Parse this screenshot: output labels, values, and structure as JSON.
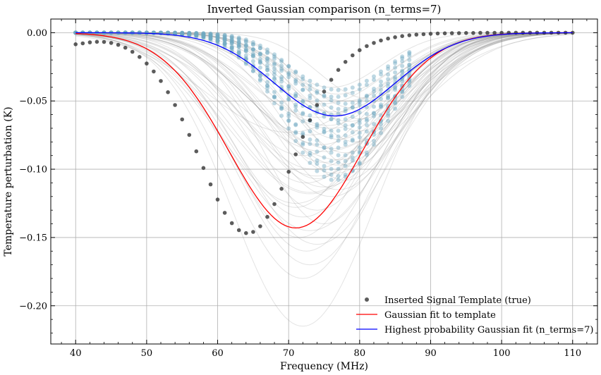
{
  "chart_data": {
    "type": "line",
    "title": "Inverted Gaussian comparison (n_terms=7)",
    "xlabel": "Frequency (MHz)",
    "ylabel": "Temperature perturbation (K)",
    "xlim": [
      36.5,
      113.5
    ],
    "ylim": [
      -0.228,
      0.01
    ],
    "grid": true,
    "legend_position": "lower-right",
    "x_ticks": [
      40,
      50,
      60,
      70,
      80,
      90,
      100,
      110
    ],
    "x_tick_labels": [
      "40",
      "50",
      "60",
      "70",
      "80",
      "90",
      "100",
      "110"
    ],
    "y_ticks": [
      0.0,
      -0.05,
      -0.1,
      -0.15,
      -0.2
    ],
    "y_tick_labels": [
      "0.00",
      "−0.05",
      "−0.10",
      "−0.15",
      "−0.20"
    ],
    "legend": [
      {
        "label": "Inserted Signal Template (true)",
        "marker": "dot",
        "color": "#333333"
      },
      {
        "label": "Gaussian fit to template",
        "marker": "line",
        "color": "#ff0000"
      },
      {
        "label": "Highest probability Gaussian fit (n_terms=7)",
        "marker": "line",
        "color": "#0000ff"
      }
    ],
    "series": [
      {
        "name": "Inserted Signal Template (true)",
        "kind": "scatter",
        "color": "#333333",
        "x": [
          40,
          41,
          42,
          43,
          44,
          45,
          46,
          47,
          48,
          49,
          50,
          51,
          52,
          53,
          54,
          55,
          56,
          57,
          58,
          59,
          60,
          61,
          62,
          63,
          64,
          65,
          66,
          67,
          68,
          69,
          70,
          71,
          72,
          73,
          74,
          75,
          76,
          77,
          78,
          79,
          80,
          81,
          82,
          83,
          84,
          85,
          86,
          87,
          88,
          89,
          90,
          91,
          92,
          93,
          94,
          95,
          96,
          97,
          98,
          99,
          100,
          101,
          102,
          103,
          104,
          105,
          106,
          107,
          108,
          109,
          110
        ],
        "y": [
          -0.0085,
          -0.0078,
          -0.0071,
          -0.0067,
          -0.0068,
          -0.0075,
          -0.0089,
          -0.011,
          -0.014,
          -0.0178,
          -0.0226,
          -0.0284,
          -0.0354,
          -0.0436,
          -0.053,
          -0.0635,
          -0.0749,
          -0.0869,
          -0.0991,
          -0.1111,
          -0.1222,
          -0.1319,
          -0.1395,
          -0.1446,
          -0.1468,
          -0.1459,
          -0.1418,
          -0.1349,
          -0.1255,
          -0.1143,
          -0.1019,
          -0.0891,
          -0.0763,
          -0.0641,
          -0.053,
          -0.0431,
          -0.0345,
          -0.0273,
          -0.0214,
          -0.0166,
          -0.0128,
          -0.0098,
          -0.0075,
          -0.0057,
          -0.0043,
          -0.0033,
          -0.0025,
          -0.0019,
          -0.0014,
          -0.0011,
          -0.0008,
          -0.0006,
          -0.0005,
          -0.0004,
          -0.0003,
          -0.0002,
          -0.0002,
          -0.0001,
          -0.0001,
          -0.0001,
          -0.0001,
          0,
          0,
          0,
          0,
          0,
          0,
          0,
          0,
          0,
          0
        ]
      },
      {
        "name": "Gaussian fit to template",
        "kind": "gaussian",
        "color": "#ff0000",
        "amplitude": -0.143,
        "center": 71.0,
        "sigma": 9.4
      },
      {
        "name": "Highest probability Gaussian fit (n_terms=7)",
        "kind": "gaussian",
        "color": "#0000ff",
        "amplitude": -0.061,
        "center": 76.5,
        "sigma": 8.5
      }
    ],
    "posterior_samples": {
      "color": "#808080",
      "opacity": 0.22,
      "amplitudes": [
        -0.04,
        -0.045,
        -0.05,
        -0.052,
        -0.055,
        -0.058,
        -0.06,
        -0.062,
        -0.065,
        -0.068,
        -0.07,
        -0.072,
        -0.075,
        -0.078,
        -0.08,
        -0.082,
        -0.085,
        -0.088,
        -0.09,
        -0.093,
        -0.095,
        -0.098,
        -0.1,
        -0.103,
        -0.105,
        -0.108,
        -0.11,
        -0.113,
        -0.115,
        -0.118,
        -0.12,
        -0.125,
        -0.13,
        -0.135,
        -0.14,
        -0.145,
        -0.15,
        -0.155,
        -0.16,
        -0.17,
        -0.18,
        -0.215,
        -0.048,
        -0.063,
        -0.073,
        -0.087,
        -0.097,
        -0.107,
        -0.117,
        -0.128
      ],
      "centers": [
        76,
        77,
        78,
        75,
        79,
        76.5,
        77.5,
        74,
        78.5,
        75.5,
        76,
        80,
        73,
        77,
        79.5,
        74.5,
        76,
        78,
        72,
        77,
        75,
        79,
        73.5,
        76.5,
        74,
        78,
        72.5,
        75,
        77,
        73,
        76,
        71,
        74,
        72,
        75,
        73,
        71.5,
        74,
        72.5,
        73,
        72,
        72,
        81,
        80,
        70,
        75,
        77,
        74,
        73,
        71
      ],
      "sigmas": [
        7,
        7.5,
        8,
        8.5,
        7.2,
        9,
        8,
        9.5,
        7.8,
        8.8,
        10,
        7,
        9.2,
        8.3,
        7.6,
        9.8,
        10.5,
        8.1,
        9.6,
        11,
        8.9,
        7.4,
        10.2,
        9.1,
        10.8,
        8.6,
        9.9,
        10.4,
        9.3,
        11.2,
        9.7,
        10.6,
        9.4,
        10.1,
        8.7,
        10.9,
        9.5,
        10.3,
        9.9,
        10.2,
        10.1,
        9.9,
        6.8,
        8.2,
        11.5,
        12,
        9.6,
        8.4,
        10.7,
        9.2
      ]
    },
    "posterior_dots": {
      "color": "#6fa8c0",
      "opacity": 0.45,
      "x_range": [
        40,
        87
      ],
      "amplitudes": [
        -0.042,
        -0.047,
        -0.052,
        -0.056,
        -0.06,
        -0.064,
        -0.068,
        -0.072,
        -0.076,
        -0.08,
        -0.085,
        -0.09,
        -0.095,
        -0.1,
        -0.105,
        -0.108
      ],
      "centers": [
        77,
        76.5,
        78,
        77.5,
        76,
        77,
        78.5,
        76.5,
        77,
        78,
        76,
        77.5,
        77,
        76.5,
        77,
        76.5
      ],
      "sigmas": [
        6.8,
        7,
        6.5,
        7.2,
        6.9,
        7.1,
        6.6,
        7.3,
        7,
        6.7,
        7.4,
        6.8,
        7.2,
        6.9,
        7.1,
        7
      ]
    }
  }
}
